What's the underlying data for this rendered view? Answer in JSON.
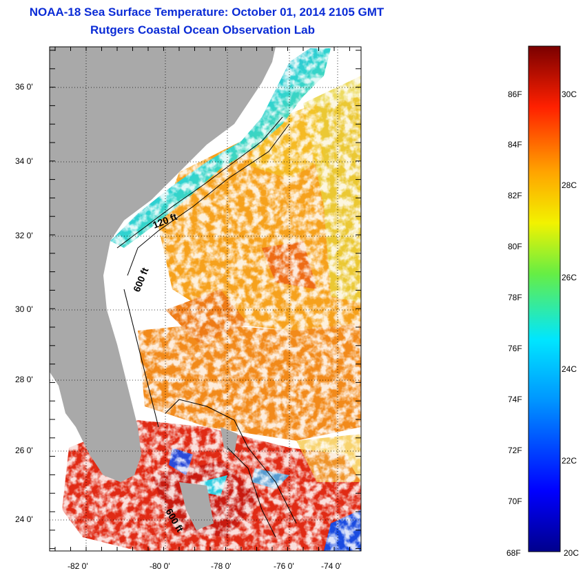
{
  "title": "NOAA-18 Sea Surface Temperature:  October 01, 2014 2105 GMT",
  "subtitle": "Rutgers Coastal Ocean Observation Lab",
  "title_color": "#0a2bd6",
  "latitude_ticks": [
    "36 0'",
    "34 0'",
    "32 0'",
    "30 0'",
    "28 0'",
    "26 0'",
    "24 0'"
  ],
  "longitude_ticks": [
    "-82 0'",
    "-80 0'",
    "-78 0'",
    "-76 0'",
    "-74 0'"
  ],
  "map_extent": {
    "lon": [
      -83,
      -73
    ],
    "lat": [
      23,
      37
    ]
  },
  "contour_labels": [
    "120 ft",
    "600 ft",
    "600 ft"
  ],
  "colorbar": {
    "fahrenheit_labels": [
      "86F",
      "84F",
      "82F",
      "80F",
      "78F",
      "76F",
      "74F",
      "72F",
      "70F",
      "68F"
    ],
    "celsius_labels": [
      "30C",
      "28C",
      "26C",
      "24C",
      "22C",
      "20C"
    ],
    "range_f": [
      68,
      88
    ],
    "range_c": [
      20,
      31
    ]
  },
  "land_color": "#a9a9a9"
}
